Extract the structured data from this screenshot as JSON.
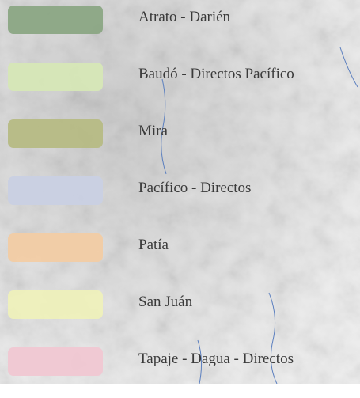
{
  "legend": {
    "items": [
      {
        "label": "Atrato - Darién",
        "color": "#8ba684"
      },
      {
        "label": "Baudó - Directos Pacífico",
        "color": "#d6e7b6"
      },
      {
        "label": "Mira",
        "color": "#b6ba84"
      },
      {
        "label": "Pacífico - Directos",
        "color": "#c9d0e3"
      },
      {
        "label": "Patía",
        "color": "#f2cca4"
      },
      {
        "label": "San Juán",
        "color": "#eef0ba"
      },
      {
        "label": "Tapaje - Dagua - Directos",
        "color": "#f0c7d2"
      }
    ]
  }
}
